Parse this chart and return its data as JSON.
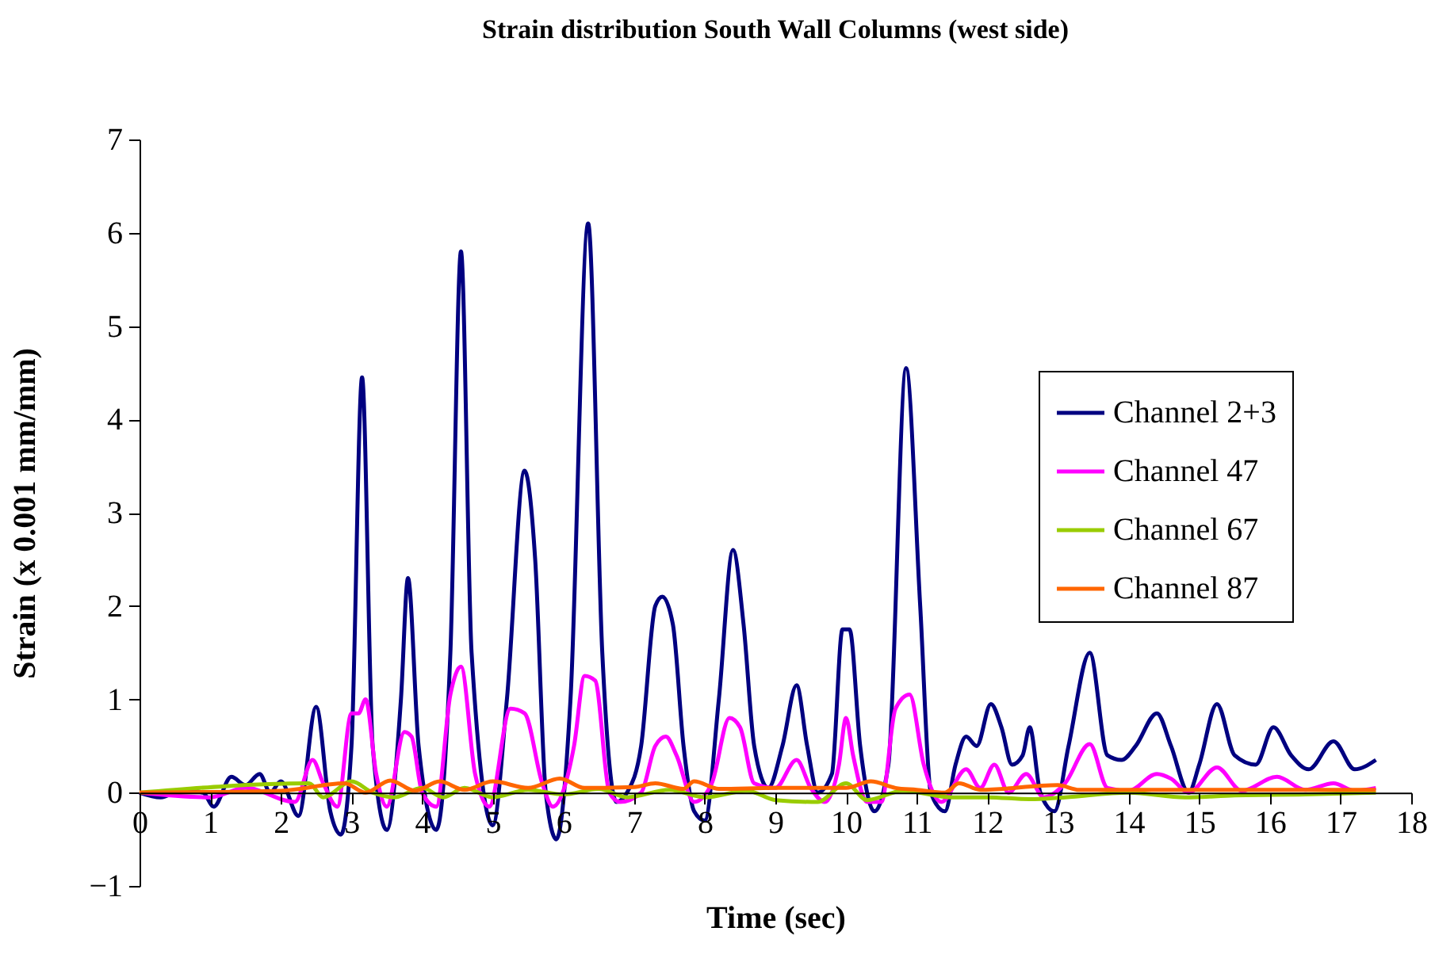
{
  "chart_data": {
    "type": "line",
    "title": "Strain distribution South Wall Columns (west side)",
    "xlabel": "Time (sec)",
    "ylabel": "Strain (x 0.001 mm/mm)",
    "xlim": [
      0,
      18
    ],
    "xticks": [
      0,
      1,
      2,
      3,
      4,
      5,
      6,
      7,
      8,
      9,
      10,
      11,
      12,
      13,
      14,
      15,
      16,
      17,
      18
    ],
    "ylim": [
      -1,
      7
    ],
    "yticks": [
      -1,
      0,
      1,
      2,
      3,
      4,
      5,
      6,
      7
    ],
    "legend": "right",
    "series": [
      {
        "name": "Channel 2+3",
        "color": "#000080",
        "x": [
          0,
          0.3,
          0.6,
          0.9,
          1.05,
          1.3,
          1.5,
          1.7,
          1.85,
          2.0,
          2.25,
          2.5,
          2.7,
          2.85,
          3.0,
          3.15,
          3.3,
          3.5,
          3.7,
          3.8,
          3.95,
          4.2,
          4.4,
          4.55,
          4.7,
          5.0,
          5.2,
          5.45,
          5.6,
          5.75,
          5.9,
          6.1,
          6.35,
          6.55,
          6.75,
          6.9,
          7.1,
          7.3,
          7.4,
          7.55,
          7.7,
          7.85,
          8.0,
          8.2,
          8.4,
          8.55,
          8.7,
          8.9,
          9.1,
          9.3,
          9.45,
          9.6,
          9.8,
          9.95,
          10.05,
          10.2,
          10.4,
          10.6,
          10.85,
          11.05,
          11.2,
          11.4,
          11.55,
          11.7,
          11.85,
          12.05,
          12.2,
          12.35,
          12.5,
          12.6,
          12.75,
          12.95,
          13.15,
          13.45,
          13.7,
          13.9,
          14.1,
          14.4,
          14.6,
          14.85,
          15.0,
          15.25,
          15.5,
          15.8,
          16.05,
          16.3,
          16.55,
          16.9,
          17.2,
          17.5
        ],
        "values": [
          0,
          -0.05,
          0.03,
          0,
          -0.15,
          0.17,
          0.08,
          0.2,
          0,
          0.12,
          -0.25,
          0.92,
          -0.2,
          -0.45,
          0.5,
          4.45,
          0.5,
          -0.4,
          1,
          2.3,
          0.5,
          -0.4,
          1.5,
          5.8,
          1.5,
          -0.35,
          1,
          3.45,
          2.5,
          0,
          -0.5,
          1,
          6.1,
          1.5,
          -0.1,
          0,
          0.5,
          2,
          2.1,
          1.8,
          0.5,
          -0.2,
          -0.3,
          1,
          2.6,
          1.8,
          0.5,
          0.05,
          0.5,
          1.15,
          0.5,
          0,
          0.2,
          1.75,
          1.75,
          0.5,
          -0.2,
          0.3,
          4.55,
          2,
          0,
          -0.2,
          0.3,
          0.6,
          0.5,
          0.95,
          0.7,
          0.3,
          0.4,
          0.7,
          0,
          -0.2,
          0.5,
          1.5,
          0.4,
          0.35,
          0.5,
          0.85,
          0.5,
          0,
          0.3,
          0.95,
          0.4,
          0.3,
          0.7,
          0.4,
          0.25,
          0.55,
          0.25,
          0.35
        ]
      },
      {
        "name": "Channel 47",
        "color": "#ff00ff",
        "x": [
          0,
          1,
          1.5,
          2.2,
          2.45,
          2.6,
          2.8,
          3.0,
          3.1,
          3.2,
          3.35,
          3.5,
          3.75,
          3.85,
          4.0,
          4.2,
          4.4,
          4.55,
          4.75,
          4.95,
          5.25,
          5.45,
          5.7,
          5.85,
          6.15,
          6.3,
          6.45,
          6.65,
          6.8,
          7.1,
          7.3,
          7.45,
          7.6,
          7.85,
          8.1,
          8.35,
          8.5,
          8.7,
          9.0,
          9.3,
          9.5,
          9.7,
          9.9,
          10.0,
          10.1,
          10.3,
          10.5,
          10.7,
          10.9,
          11.1,
          11.35,
          11.7,
          11.9,
          12.1,
          12.3,
          12.55,
          12.8,
          13.1,
          13.45,
          13.7,
          14.0,
          14.4,
          14.6,
          14.85,
          15.25,
          15.6,
          16.1,
          16.5,
          16.9,
          17.2,
          17.5
        ],
        "values": [
          0,
          -0.05,
          0.05,
          -0.1,
          0.35,
          0.1,
          -0.15,
          0.85,
          0.85,
          1,
          0.2,
          -0.15,
          0.65,
          0.6,
          0,
          -0.15,
          1.05,
          1.35,
          0.2,
          -0.15,
          0.9,
          0.85,
          0.1,
          -0.15,
          0.5,
          1.25,
          1.2,
          0,
          -0.1,
          0,
          0.5,
          0.6,
          0.4,
          -0.1,
          0.1,
          0.8,
          0.7,
          0.1,
          0.05,
          0.35,
          0.05,
          -0.1,
          0.3,
          0.8,
          0.4,
          -0.1,
          -0.1,
          0.9,
          1.05,
          0.3,
          -0.1,
          0.25,
          0.05,
          0.3,
          0,
          0.2,
          -0.05,
          0.1,
          0.52,
          0.05,
          0.02,
          0.2,
          0.15,
          0,
          0.27,
          0.02,
          0.17,
          0.03,
          0.1,
          0.02,
          0.05
        ]
      },
      {
        "name": "Channel 67",
        "color": "#99cc00",
        "x": [
          0,
          2.4,
          2.6,
          3.0,
          3.3,
          3.6,
          4.0,
          4.3,
          4.6,
          5.0,
          5.5,
          6.0,
          6.5,
          6.9,
          7.5,
          8.0,
          8.6,
          9.0,
          9.6,
          10.0,
          10.3,
          10.8,
          11.5,
          12.0,
          12.6,
          13.1,
          14.0,
          14.8,
          15.5,
          16.5,
          17.5
        ],
        "values": [
          0,
          0.1,
          -0.05,
          0.12,
          0,
          -0.05,
          0.05,
          -0.05,
          0.05,
          -0.05,
          0.03,
          -0.02,
          0.04,
          -0.05,
          0.03,
          -0.05,
          0.02,
          -0.08,
          -0.1,
          0.1,
          -0.08,
          0.02,
          -0.05,
          -0.05,
          -0.07,
          -0.05,
          0,
          -0.05,
          -0.03,
          -0.02,
          0
        ]
      },
      {
        "name": "Channel 87",
        "color": "#ff6600",
        "x": [
          0,
          2.0,
          2.9,
          3.2,
          3.55,
          3.9,
          4.25,
          4.6,
          5.0,
          5.5,
          5.95,
          6.3,
          7.0,
          7.3,
          7.7,
          7.85,
          8.2,
          9.0,
          10.0,
          10.35,
          10.7,
          11.0,
          11.4,
          11.6,
          11.9,
          13.0,
          13.3,
          17.5
        ],
        "values": [
          0,
          0.02,
          0.1,
          0,
          0.13,
          0.02,
          0.12,
          0.03,
          0.12,
          0.05,
          0.15,
          0.05,
          0.06,
          0.1,
          0.04,
          0.12,
          0.04,
          0.05,
          0.05,
          0.12,
          0.05,
          0.03,
          0,
          0.1,
          0.03,
          0.08,
          0.03,
          0.03
        ]
      }
    ]
  }
}
